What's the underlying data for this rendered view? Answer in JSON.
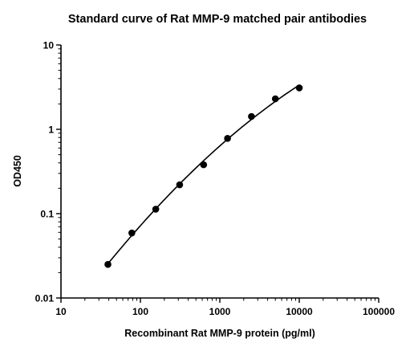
{
  "chart_data": {
    "type": "scatter",
    "title": "Standard curve of Rat MMP-9 matched pair antibodies",
    "xlabel": "Recombinant Rat MMP-9 protein (pg/ml)",
    "ylabel": "OD450",
    "x_scale": "log",
    "y_scale": "log",
    "xlim": [
      10,
      100000
    ],
    "ylim": [
      0.01,
      10
    ],
    "x_ticks": [
      "10",
      "100",
      "1000",
      "10000",
      "100000"
    ],
    "y_ticks": [
      "0.01",
      "0.1",
      "1",
      "10"
    ],
    "grid": false,
    "legend": "none",
    "fit_curve": true,
    "series": [
      {
        "x": [
          39,
          78,
          156,
          312,
          625,
          1250,
          2500,
          5000,
          10000
        ],
        "y": [
          0.025,
          0.059,
          0.113,
          0.22,
          0.38,
          0.78,
          1.42,
          2.3,
          3.1
        ]
      }
    ],
    "colors": {
      "marker": "#000000",
      "line": "#000000"
    }
  }
}
